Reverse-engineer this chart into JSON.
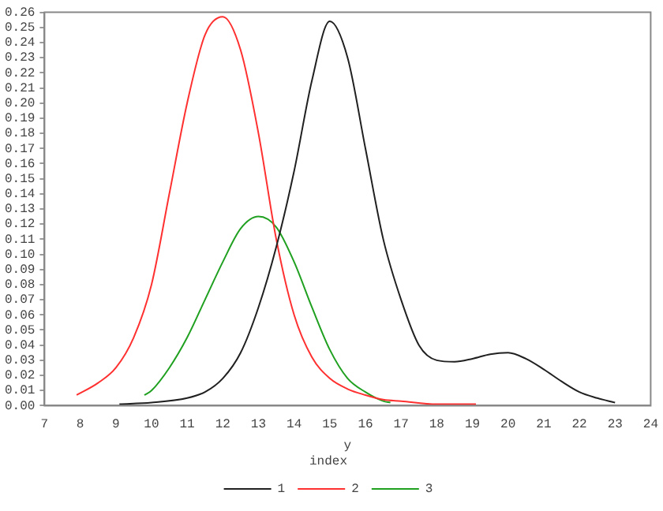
{
  "chart_data": {
    "type": "line",
    "xlabel": "y",
    "legend_title": "index",
    "legend": "bottom",
    "marker": "none",
    "line_style": "solid",
    "grid": false,
    "xlim": [
      7,
      24
    ],
    "xticks": [
      7,
      8,
      9,
      10,
      11,
      12,
      13,
      14,
      15,
      16,
      17,
      18,
      19,
      20,
      21,
      22,
      23,
      24
    ],
    "ylim": [
      0,
      0.26
    ],
    "yticks": [
      {
        "value": 0,
        "label": "0.00"
      },
      {
        "value": 0.01,
        "label": "0.01"
      },
      {
        "value": 0.02,
        "label": "0.02"
      },
      {
        "value": 0.03,
        "label": "0.03"
      },
      {
        "value": 0.04,
        "label": "0.04"
      },
      {
        "value": 0.05,
        "label": "0.05"
      },
      {
        "value": 0.06,
        "label": "0.06"
      },
      {
        "value": 0.07,
        "label": "0.07"
      },
      {
        "value": 0.08,
        "label": "0.08"
      },
      {
        "value": 0.09,
        "label": "0.09"
      },
      {
        "value": 0.1,
        "label": "0.10"
      },
      {
        "value": 0.11,
        "label": "0.11"
      },
      {
        "value": 0.12,
        "label": "0.12"
      },
      {
        "value": 0.13,
        "label": "0.13"
      },
      {
        "value": 0.14,
        "label": "0.14"
      },
      {
        "value": 0.15,
        "label": "0.15"
      },
      {
        "value": 0.16,
        "label": "0.16"
      },
      {
        "value": 0.17,
        "label": "0.17"
      },
      {
        "value": 0.18,
        "label": "0.18"
      },
      {
        "value": 0.19,
        "label": "0.19"
      },
      {
        "value": 0.2,
        "label": "0.20"
      },
      {
        "value": 0.21,
        "label": "0.21"
      },
      {
        "value": 0.22,
        "label": "0.22"
      },
      {
        "value": 0.23,
        "label": "0.23"
      },
      {
        "value": 0.24,
        "label": "0.24"
      },
      {
        "value": 0.25,
        "label": "0.25"
      },
      {
        "value": 0.26,
        "label": "0.26"
      }
    ],
    "series": [
      {
        "name": "1",
        "color": "#202020",
        "x": [
          9.1,
          10,
          11,
          11.5,
          12,
          12.5,
          13,
          13.5,
          14,
          14.5,
          15,
          15.5,
          16,
          16.5,
          17,
          17.5,
          18,
          18.5,
          19,
          19.5,
          20,
          20.5,
          21,
          21.5,
          22,
          22.5,
          23
        ],
        "values": [
          0.001,
          0.002,
          0.005,
          0.009,
          0.018,
          0.035,
          0.065,
          0.105,
          0.155,
          0.215,
          0.254,
          0.23,
          0.17,
          0.11,
          0.07,
          0.04,
          0.03,
          0.029,
          0.031,
          0.034,
          0.035,
          0.031,
          0.024,
          0.016,
          0.009,
          0.005,
          0.002
        ]
      },
      {
        "name": "2",
        "color": "#ff3030",
        "x": [
          7.9,
          8.5,
          9,
          9.5,
          10,
          10.5,
          11,
          11.5,
          12,
          12.5,
          13,
          13.5,
          14,
          14.5,
          15,
          15.5,
          16,
          16.5,
          17,
          18,
          19.1
        ],
        "values": [
          0.007,
          0.015,
          0.025,
          0.045,
          0.08,
          0.14,
          0.2,
          0.245,
          0.257,
          0.235,
          0.18,
          0.11,
          0.06,
          0.032,
          0.018,
          0.011,
          0.007,
          0.004,
          0.003,
          0.001,
          0.001
        ]
      },
      {
        "name": "3",
        "color": "#20a020",
        "x": [
          9.8,
          10,
          10.5,
          11,
          11.5,
          12,
          12.5,
          13,
          13.5,
          14,
          14.5,
          15,
          15.5,
          16,
          16.5,
          16.7
        ],
        "values": [
          0.007,
          0.01,
          0.025,
          0.045,
          0.07,
          0.095,
          0.117,
          0.125,
          0.118,
          0.095,
          0.065,
          0.037,
          0.018,
          0.009,
          0.003,
          0.002
        ]
      }
    ]
  }
}
